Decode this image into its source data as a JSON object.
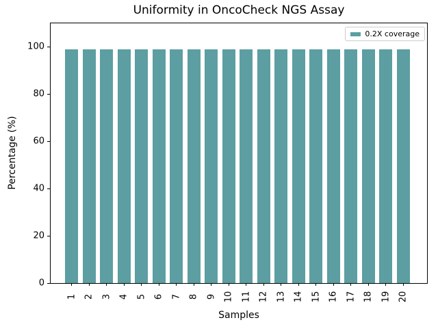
{
  "chart_data": {
    "type": "bar",
    "title": "Uniformity in OncoCheck NGS Assay",
    "xlabel": "Samples",
    "ylabel": "Percentage (%)",
    "categories": [
      "1",
      "2",
      "3",
      "4",
      "5",
      "6",
      "7",
      "8",
      "9",
      "10",
      "11",
      "12",
      "13",
      "14",
      "15",
      "16",
      "17",
      "18",
      "19",
      "20"
    ],
    "series": [
      {
        "name": "0.2X coverage",
        "values": [
          99,
          99,
          99,
          99,
          99,
          99,
          99,
          99,
          99,
          99,
          99,
          99,
          99,
          99,
          99,
          99,
          99,
          99,
          99,
          99
        ]
      }
    ],
    "ylim": [
      0,
      110
    ],
    "yticks": [
      0,
      20,
      40,
      60,
      80,
      100
    ],
    "bar_color": "#5c9ea1",
    "axis_color": "#000000",
    "legend_position": "upper right",
    "grid": false
  },
  "legend": {
    "label": "0.2X coverage",
    "swatch_color": "#5c9ea1"
  }
}
